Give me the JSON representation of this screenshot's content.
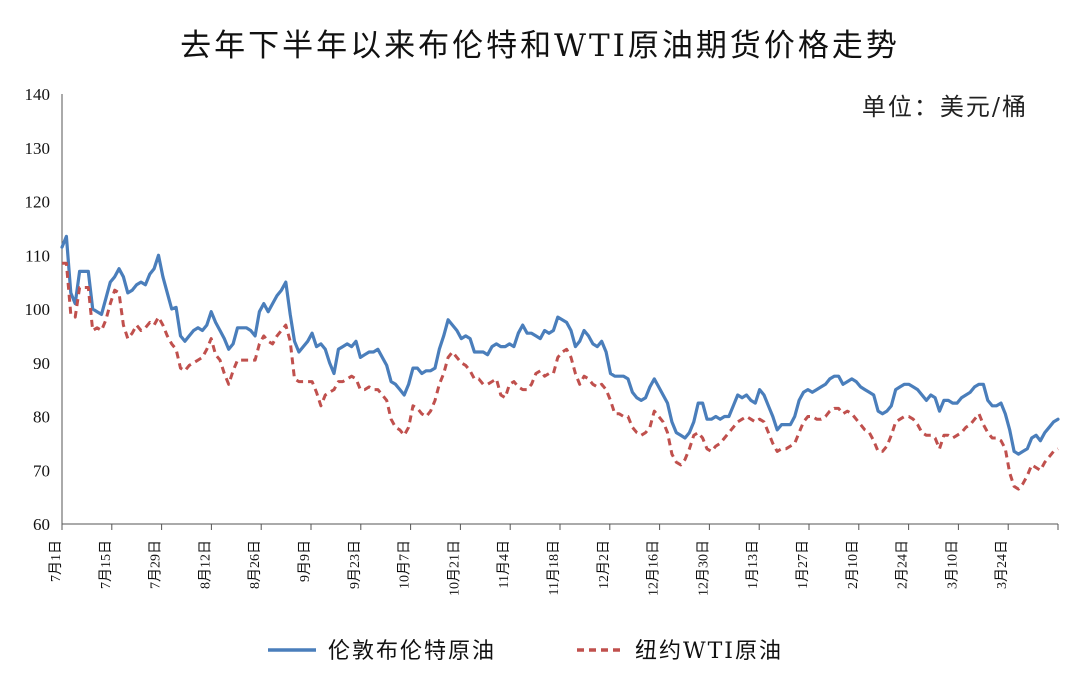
{
  "chart_data": {
    "type": "line",
    "title": "去年下半年以来布伦特和WTI原油期货价格走势",
    "unit_label": "单位：美元/桶",
    "ylim": [
      60,
      140
    ],
    "yticks": [
      60,
      70,
      80,
      90,
      100,
      110,
      120,
      130,
      140
    ],
    "grid": false,
    "legend_position": "bottom",
    "x": [
      "7月1日",
      "7月15日",
      "7月29日",
      "8月12日",
      "8月26日",
      "9月9日",
      "9月23日",
      "10月7日",
      "10月21日",
      "11月4日",
      "11月18日",
      "12月2日",
      "12月16日",
      "12月30日",
      "1月13日",
      "1月27日",
      "2月10日",
      "2月24日",
      "3月10日",
      "3月24日"
    ],
    "series": [
      {
        "name": "伦敦布伦特原油",
        "color": "#4a7ebb",
        "style": "solid",
        "values": [
          [
            111.5,
            113.5,
            103,
            101,
            107,
            107,
            107,
            100,
            99.5,
            99,
            102,
            105,
            106,
            107.5,
            106,
            103,
            103.5,
            104.5,
            105,
            104.5,
            106.5,
            107.5,
            110,
            106,
            103,
            100,
            100.3,
            95,
            94,
            95,
            96,
            96.5,
            96,
            97,
            99.5,
            97.5,
            96,
            94.5,
            92.5,
            93.5,
            96.5,
            96.5,
            96.5,
            96,
            95,
            99.5,
            101,
            99.5,
            101,
            102.5,
            103.5,
            105
          ],
          [
            99,
            94,
            92,
            93,
            94,
            95.5,
            93,
            93.5,
            92.5,
            90,
            88,
            92.5,
            93,
            93.5,
            93,
            94,
            91,
            91.5,
            92,
            92,
            92.5,
            91,
            89.5,
            86.5,
            86,
            85,
            84,
            86,
            89,
            89,
            88,
            88.5,
            88.5,
            89,
            92.5,
            95,
            98,
            97,
            96,
            94.5,
            95,
            94.5,
            92,
            92,
            92,
            91.5,
            93,
            93.5,
            93,
            93,
            93.5,
            93,
            95.5,
            97,
            95.5,
            95.5,
            95,
            94.5,
            96,
            95.5,
            96,
            98.5,
            98,
            97.5,
            96,
            93,
            94,
            96,
            95,
            93.5,
            93,
            94,
            92
          ],
          [
            88,
            87.5,
            87.5,
            87.5,
            87,
            84.5,
            83.5,
            83,
            83.5,
            85.5,
            87,
            85.5,
            84,
            82.5,
            79,
            77,
            76.5,
            76,
            77,
            79,
            82.5,
            82.5,
            79.5,
            79.5,
            80,
            79.5,
            80,
            80,
            82,
            84,
            83.5,
            84,
            83,
            82.5,
            85,
            84,
            82,
            80,
            77.5,
            78.5,
            78.5,
            78.5,
            80,
            83,
            84.5,
            85,
            84.5,
            85,
            85.5,
            86,
            87,
            87.5,
            87.5,
            86,
            86.5,
            87,
            86.5,
            85.5,
            85,
            84.5,
            84,
            81,
            80.5,
            81,
            82,
            85,
            85.5,
            86,
            86,
            85.5,
            85,
            84,
            83,
            84,
            83.5,
            81,
            83,
            83,
            82.5,
            82.5,
            83.5,
            84,
            84.5,
            85.5,
            86,
            86,
            83,
            82,
            82,
            82.5,
            80.5,
            77.5,
            73.5,
            73,
            73.5,
            74,
            76,
            76.5,
            75.5,
            77,
            78,
            79,
            79.5
          ]
        ]
      },
      {
        "name": "纽约WTI原油",
        "color": "#c0504d",
        "style": "dashed",
        "values": [
          [
            108.5,
            108.5,
            99,
            98.5,
            104,
            104,
            104,
            96,
            96.5,
            96,
            98,
            101,
            103.5,
            103,
            97,
            94.5,
            95.5,
            97,
            96,
            96.5,
            97.5,
            97,
            98.5,
            97,
            95,
            93.5,
            92.5,
            89,
            88.5,
            89.5,
            90,
            90.5,
            91,
            92.5,
            94.5,
            91.5,
            90.5,
            88,
            86,
            88.5,
            90.5,
            90.5,
            90.5,
            90.5,
            90.5,
            93.5,
            95,
            94,
            93.5,
            95,
            96,
            97
          ],
          [
            94,
            87,
            86.5,
            86.5,
            86.5,
            86.5,
            84.5,
            82,
            84,
            84.5,
            85,
            86.5,
            86.5,
            87,
            87.5,
            87,
            85,
            85,
            85.5,
            85,
            85,
            84,
            83,
            79.5,
            78,
            77.5,
            76.5,
            78,
            82,
            81.5,
            80.5,
            80,
            81,
            83,
            86,
            88,
            91,
            92,
            91,
            90,
            89.5,
            88.5,
            87,
            87,
            86,
            86,
            86.5,
            87,
            84,
            83.5,
            86,
            86.5,
            85.5,
            85,
            85,
            86,
            88,
            88.5,
            87.5,
            88,
            88,
            91,
            92,
            92.5,
            91,
            88,
            86,
            87.5,
            87,
            86,
            85.5,
            86,
            85
          ],
          [
            83,
            80.5,
            80.5,
            80,
            80,
            78,
            77,
            76.5,
            77,
            78,
            81,
            80,
            79,
            77,
            73,
            71.5,
            71,
            72,
            74,
            76.5,
            77,
            76,
            74,
            73.5,
            74.5,
            75,
            76,
            77,
            78,
            79,
            79.5,
            80,
            79.5,
            79,
            79.5,
            79,
            77,
            75,
            73.5,
            74,
            74,
            74.5,
            75,
            77,
            79,
            80,
            80,
            79.5,
            79.5,
            80,
            81,
            81.5,
            81.5,
            80.5,
            81,
            80.5,
            79.5,
            78.5,
            77.5,
            77,
            75.5,
            73.5,
            73.5,
            74.5,
            76.5,
            79,
            79.5,
            80,
            80,
            79.5,
            78.5,
            77,
            76.5,
            76.5,
            76,
            74,
            76.5,
            76.5,
            76,
            76.5,
            77,
            78,
            78.5,
            79.5,
            80.5,
            78.5,
            77,
            76,
            76,
            75.5,
            74,
            69.5,
            67,
            66.5,
            67.5,
            69,
            71,
            70.5,
            70,
            71.5,
            72.5,
            73.5,
            74
          ]
        ]
      }
    ]
  }
}
